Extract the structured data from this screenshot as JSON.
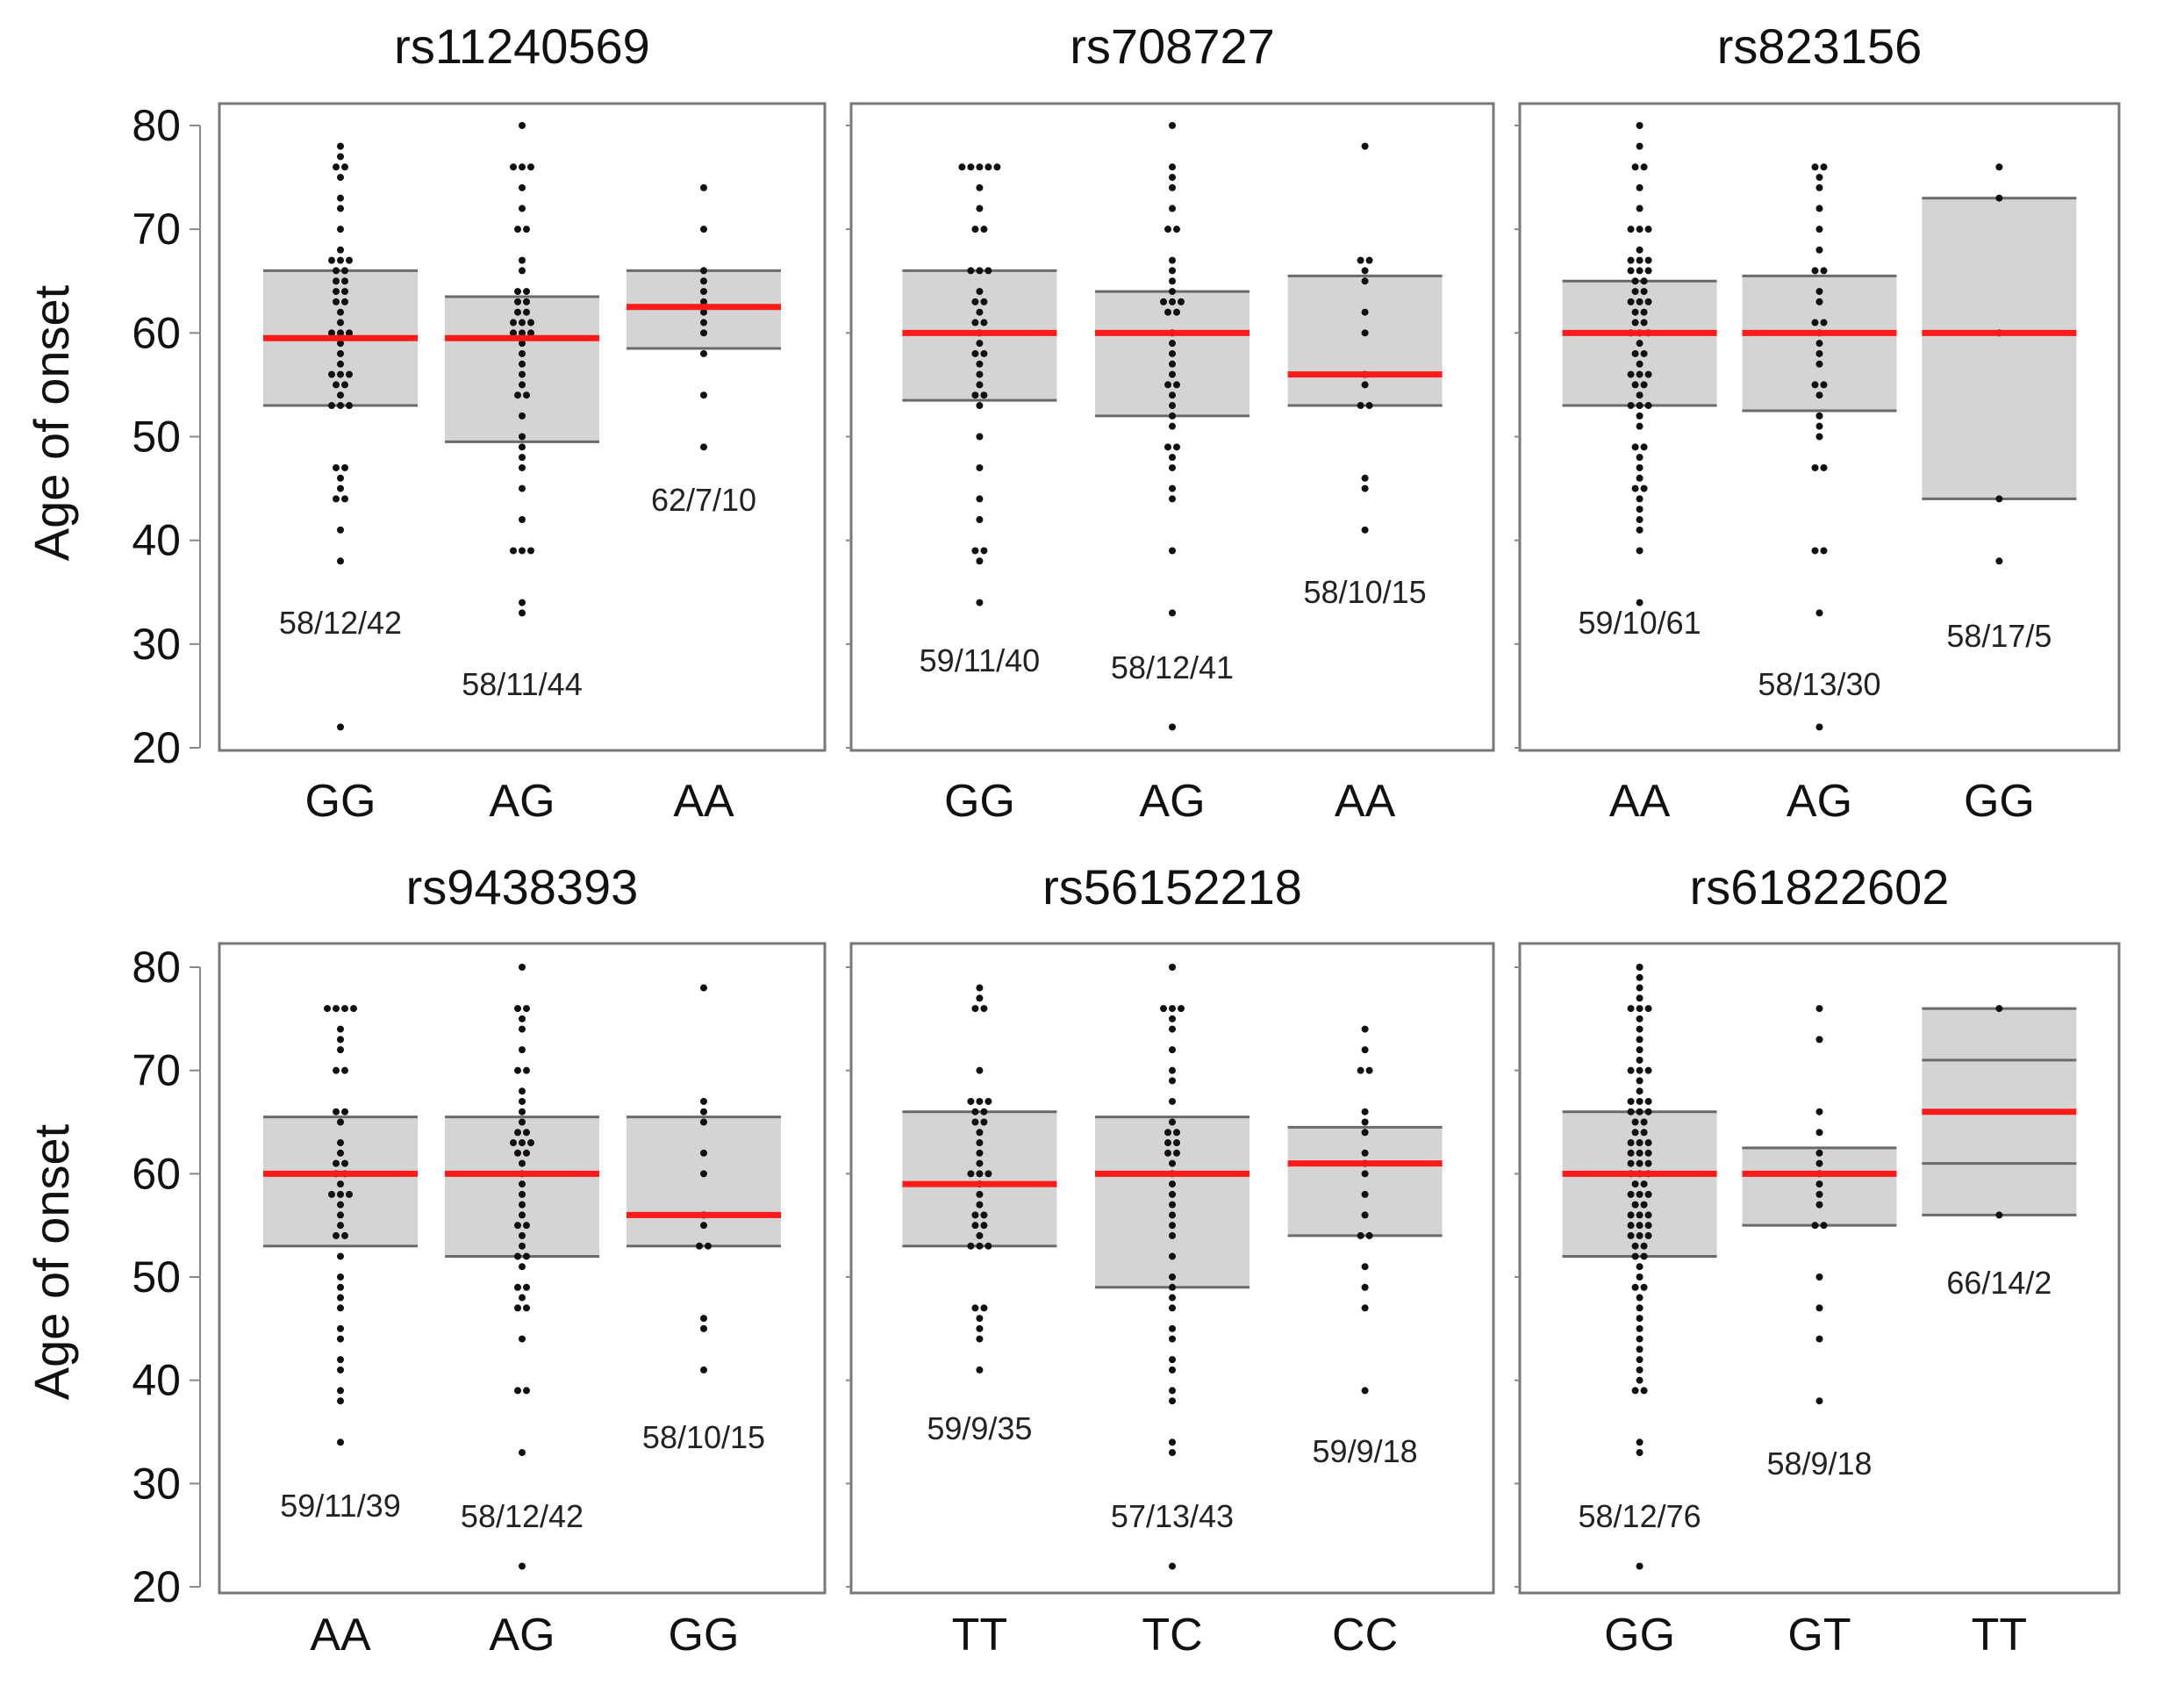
{
  "chart_data": {
    "type": "dot-box",
    "ylabel": "Age of onset",
    "ylim": [
      20,
      80
    ],
    "yticks": [
      20,
      30,
      40,
      50,
      60,
      70,
      80
    ],
    "panels": [
      {
        "title": "rs11240569",
        "groups": [
          {
            "genotype": "GG",
            "label": "58/12/42",
            "q1": 53,
            "median": 59.5,
            "q3": 66,
            "points": [
              78,
              77,
              76,
              76,
              75,
              73,
              72,
              70,
              68,
              67,
              67,
              67,
              66,
              66,
              65,
              65,
              64,
              64,
              63,
              63,
              62,
              61,
              60,
              60,
              60,
              59,
              58,
              57,
              56,
              56,
              56,
              55,
              55,
              54,
              53,
              53,
              53,
              47,
              47,
              46,
              45,
              44,
              44,
              41,
              38,
              22
            ]
          },
          {
            "genotype": "AG",
            "label": "58/11/44",
            "q1": 49.5,
            "median": 59.5,
            "q3": 63.5,
            "points": [
              80,
              76,
              76,
              76,
              74,
              72,
              70,
              70,
              67,
              66,
              64,
              64,
              63,
              63,
              62,
              62,
              61,
              61,
              61,
              60,
              60,
              60,
              59,
              58,
              57,
              56,
              55,
              54,
              54,
              52,
              50,
              49,
              48,
              47,
              45,
              42,
              39,
              39,
              39,
              34,
              33
            ]
          },
          {
            "genotype": "AA",
            "label": "62/7/10",
            "q1": 58.5,
            "median": 62.5,
            "q3": 66,
            "points": [
              74,
              70,
              66,
              65,
              64,
              63,
              62,
              61,
              60,
              58,
              54,
              49
            ]
          }
        ]
      },
      {
        "title": "rs708727",
        "groups": [
          {
            "genotype": "GG",
            "label": "59/11/40",
            "q1": 53.5,
            "median": 60,
            "q3": 66,
            "points": [
              76,
              76,
              76,
              76,
              76,
              74,
              72,
              70,
              70,
              66,
              66,
              66,
              64,
              63,
              63,
              62,
              61,
              61,
              60,
              59,
              58,
              58,
              57,
              56,
              55,
              54,
              54,
              53,
              50,
              47,
              44,
              42,
              39,
              39,
              38,
              34
            ]
          },
          {
            "genotype": "AG",
            "label": "58/12/41",
            "q1": 52,
            "median": 60,
            "q3": 64,
            "points": [
              80,
              76,
              75,
              74,
              72,
              70,
              70,
              67,
              66,
              65,
              64,
              63,
              63,
              63,
              62,
              62,
              60,
              59,
              58,
              57,
              56,
              55,
              55,
              54,
              53,
              52,
              51,
              49,
              49,
              48,
              47,
              45,
              44,
              39,
              33,
              22
            ]
          },
          {
            "genotype": "AA",
            "label": "58/10/15",
            "q1": 53,
            "median": 56,
            "q3": 65.5,
            "points": [
              78,
              67,
              67,
              66,
              65,
              62,
              60,
              56,
              55,
              53,
              53,
              46,
              45,
              41
            ]
          }
        ]
      },
      {
        "title": "rs823156",
        "groups": [
          {
            "genotype": "AA",
            "label": "59/10/61",
            "q1": 53,
            "median": 60,
            "q3": 65,
            "points": [
              80,
              78,
              76,
              76,
              74,
              72,
              70,
              70,
              70,
              68,
              67,
              67,
              67,
              66,
              66,
              66,
              65,
              65,
              64,
              64,
              63,
              63,
              63,
              62,
              62,
              61,
              61,
              60,
              60,
              60,
              59,
              58,
              58,
              57,
              56,
              56,
              56,
              55,
              55,
              54,
              53,
              53,
              53,
              52,
              51,
              49,
              49,
              48,
              47,
              46,
              45,
              45,
              44,
              43,
              42,
              41,
              39,
              34
            ]
          },
          {
            "genotype": "AG",
            "label": "58/13/30",
            "q1": 52.5,
            "median": 60,
            "q3": 65.5,
            "points": [
              76,
              76,
              75,
              74,
              72,
              70,
              68,
              66,
              66,
              64,
              63,
              61,
              61,
              60,
              59,
              58,
              57,
              55,
              55,
              54,
              52,
              51,
              50,
              47,
              47,
              39,
              39,
              33,
              22
            ]
          },
          {
            "genotype": "GG",
            "label": "58/17/5",
            "q1": 44,
            "median": 60,
            "q3": 73,
            "points": [
              76,
              73,
              60,
              44,
              38
            ]
          }
        ]
      },
      {
        "title": "rs9438393",
        "groups": [
          {
            "genotype": "AA",
            "label": "59/11/39",
            "q1": 53,
            "median": 60,
            "q3": 65.5,
            "points": [
              76,
              76,
              76,
              76,
              74,
              73,
              72,
              70,
              70,
              66,
              66,
              65,
              63,
              62,
              61,
              61,
              60,
              60,
              59,
              58,
              58,
              58,
              57,
              56,
              55,
              54,
              54,
              52,
              50,
              49,
              48,
              47,
              45,
              44,
              42,
              41,
              39,
              38,
              34
            ]
          },
          {
            "genotype": "AG",
            "label": "58/12/42",
            "q1": 52,
            "median": 60,
            "q3": 65.5,
            "points": [
              80,
              76,
              76,
              75,
              74,
              72,
              70,
              70,
              68,
              67,
              66,
              65,
              64,
              64,
              63,
              63,
              63,
              62,
              62,
              61,
              60,
              59,
              58,
              57,
              56,
              55,
              55,
              54,
              53,
              52,
              52,
              51,
              49,
              49,
              48,
              47,
              47,
              44,
              39,
              39,
              33,
              22
            ]
          },
          {
            "genotype": "GG",
            "label": "58/10/15",
            "q1": 53,
            "median": 56,
            "q3": 65.5,
            "points": [
              78,
              67,
              66,
              65,
              62,
              60,
              56,
              55,
              53,
              53,
              46,
              45,
              41
            ]
          }
        ]
      },
      {
        "title": "rs56152218",
        "groups": [
          {
            "genotype": "TT",
            "label": "59/9/35",
            "q1": 53,
            "median": 59,
            "q3": 66,
            "points": [
              78,
              77,
              76,
              76,
              70,
              67,
              67,
              67,
              66,
              66,
              65,
              65,
              64,
              63,
              62,
              61,
              60,
              60,
              60,
              59,
              58,
              57,
              56,
              56,
              55,
              55,
              54,
              53,
              53,
              53,
              47,
              47,
              46,
              45,
              44,
              41
            ]
          },
          {
            "genotype": "TC",
            "label": "57/13/43",
            "q1": 49,
            "median": 60,
            "q3": 65.5,
            "points": [
              80,
              76,
              76,
              76,
              75,
              74,
              72,
              70,
              69,
              67,
              65,
              64,
              64,
              63,
              63,
              62,
              62,
              61,
              60,
              59,
              58,
              57,
              56,
              55,
              54,
              52,
              50,
              49,
              48,
              47,
              45,
              44,
              42,
              41,
              39,
              38,
              34,
              33,
              22
            ]
          },
          {
            "genotype": "CC",
            "label": "59/9/18",
            "q1": 54,
            "median": 61,
            "q3": 64.5,
            "points": [
              74,
              72,
              70,
              70,
              66,
              65,
              64,
              62,
              61,
              60,
              58,
              56,
              54,
              54,
              51,
              49,
              47,
              39
            ]
          }
        ]
      },
      {
        "title": "rs61822602",
        "groups": [
          {
            "genotype": "GG",
            "label": "58/12/76",
            "q1": 52,
            "median": 60,
            "q3": 66,
            "points": [
              80,
              79,
              78,
              77,
              76,
              76,
              76,
              75,
              74,
              73,
              72,
              71,
              70,
              70,
              70,
              69,
              68,
              67,
              67,
              67,
              66,
              66,
              66,
              65,
              65,
              64,
              64,
              63,
              63,
              63,
              62,
              62,
              62,
              61,
              61,
              61,
              60,
              60,
              60,
              59,
              59,
              58,
              58,
              58,
              57,
              57,
              56,
              56,
              56,
              55,
              55,
              55,
              54,
              54,
              54,
              53,
              53,
              52,
              52,
              51,
              50,
              49,
              49,
              48,
              47,
              46,
              45,
              44,
              43,
              42,
              41,
              40,
              39,
              39,
              34,
              33,
              22
            ]
          },
          {
            "genotype": "GT",
            "label": "58/9/18",
            "q1": 55,
            "median": 60,
            "q3": 62.5,
            "points": [
              76,
              73,
              66,
              64,
              62,
              61,
              60,
              59,
              58,
              57,
              55,
              55,
              50,
              47,
              44,
              38
            ]
          },
          {
            "genotype": "TT",
            "label": "66/14/2",
            "q1": 56,
            "median": 66,
            "q3": 76,
            "inner_lines": [
              61,
              71
            ],
            "points": [
              76,
              56
            ]
          }
        ]
      }
    ]
  }
}
